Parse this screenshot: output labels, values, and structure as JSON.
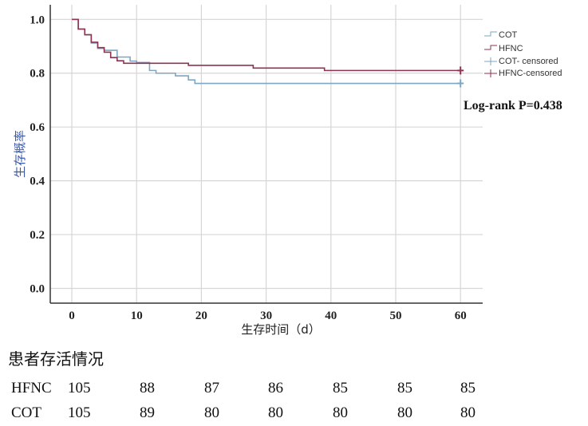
{
  "chart_data": {
    "type": "line",
    "subtype": "kaplan-meier",
    "title": "",
    "xlabel": "生存时间（d）",
    "ylabel": "生存概率",
    "xlim": [
      -3,
      63
    ],
    "ylim": [
      -0.05,
      1.05
    ],
    "xticks": [
      "0",
      "10",
      "20",
      "30",
      "40",
      "50",
      "60"
    ],
    "yticks": [
      "0.0",
      "0.2",
      "0.4",
      "0.6",
      "0.8",
      "1.0"
    ],
    "grid": true,
    "legend_position": "top-right",
    "legend": [
      "COT",
      "HFNC",
      "COT- censored",
      "HFNC-censored"
    ],
    "annotation": "Log-rank P=0.438",
    "series": [
      {
        "name": "COT",
        "color": "#7fa6c2",
        "steps": [
          [
            0,
            1.0
          ],
          [
            1,
            0.964
          ],
          [
            2,
            0.943
          ],
          [
            3,
            0.912
          ],
          [
            4,
            0.892
          ],
          [
            5,
            0.885
          ],
          [
            7,
            0.86
          ],
          [
            9,
            0.845
          ],
          [
            10,
            0.84
          ],
          [
            12,
            0.81
          ],
          [
            13,
            0.8
          ],
          [
            16,
            0.79
          ],
          [
            18,
            0.775
          ],
          [
            19,
            0.762
          ],
          [
            60,
            0.762
          ]
        ],
        "censored": [
          60
        ]
      },
      {
        "name": "HFNC",
        "color": "#8e3350",
        "steps": [
          [
            0,
            1.0
          ],
          [
            1,
            0.964
          ],
          [
            2,
            0.943
          ],
          [
            3,
            0.915
          ],
          [
            4,
            0.895
          ],
          [
            5,
            0.878
          ],
          [
            6,
            0.858
          ],
          [
            7,
            0.846
          ],
          [
            8,
            0.837
          ],
          [
            18,
            0.829
          ],
          [
            28,
            0.819
          ],
          [
            39,
            0.81
          ],
          [
            60,
            0.81
          ]
        ],
        "censored": [
          60
        ]
      }
    ]
  },
  "risk_table": {
    "title": "患者存活情况",
    "rows": [
      {
        "label": "HFNC",
        "values": [
          "105",
          "88",
          "87",
          "86",
          "85",
          "85",
          "85"
        ]
      },
      {
        "label": "COT",
        "values": [
          "105",
          "89",
          "80",
          "80",
          "80",
          "80",
          "80"
        ]
      }
    ]
  }
}
